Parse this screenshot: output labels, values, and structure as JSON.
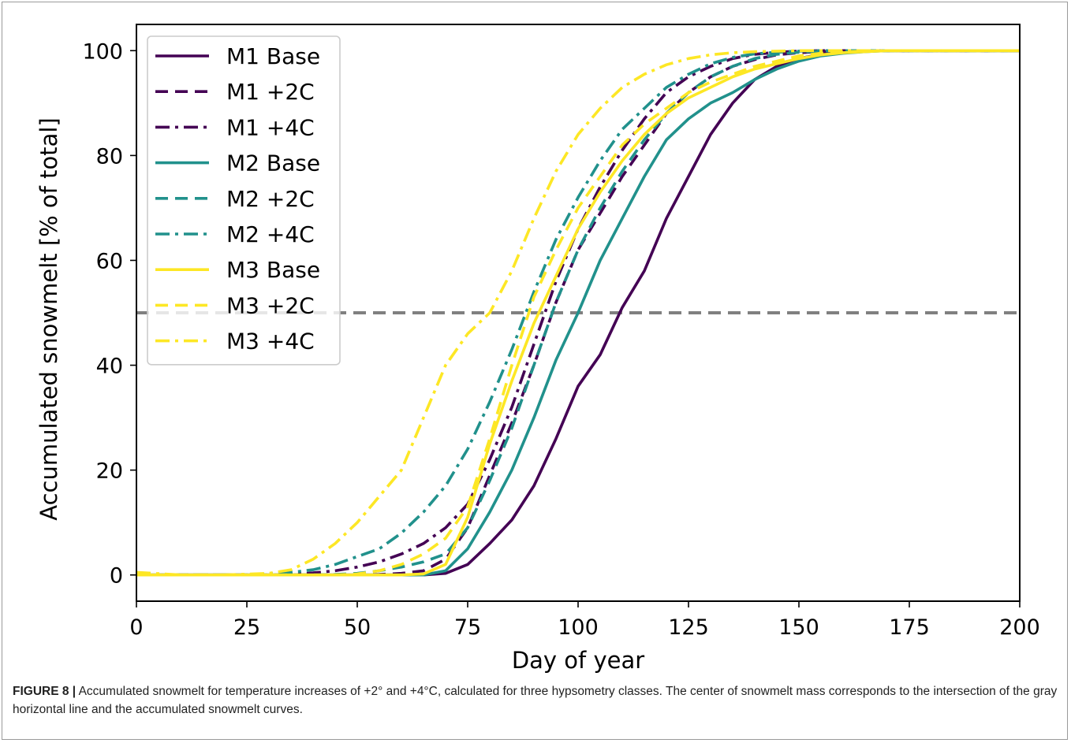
{
  "figure": {
    "caption_label": "FIGURE 8 |",
    "caption_text": " Accumulated snowmelt for temperature increases of +2° and +4°C, calculated for three hypsometry classes. The center of snowmelt mass corresponds to the intersection of the gray horizontal line and the accumulated snowmelt curves."
  },
  "chart_data": {
    "type": "line",
    "title": "",
    "xlabel": "Day of year",
    "ylabel": "Accumulated snowmelt [% of total]",
    "xlim": [
      0,
      200
    ],
    "ylim": [
      -5,
      105
    ],
    "xticks": [
      0,
      25,
      50,
      75,
      100,
      125,
      150,
      175,
      200
    ],
    "yticks": [
      0,
      20,
      40,
      60,
      80,
      100
    ],
    "grid": false,
    "legend_position": "top-left",
    "reference_line": {
      "y": 50,
      "color": "#808080",
      "style": "dashed"
    },
    "x": [
      0,
      10,
      20,
      30,
      35,
      40,
      45,
      50,
      55,
      60,
      65,
      70,
      75,
      80,
      85,
      90,
      95,
      100,
      105,
      110,
      115,
      120,
      125,
      130,
      135,
      140,
      145,
      150,
      155,
      160,
      165,
      170,
      175,
      180,
      185,
      190,
      195,
      200
    ],
    "series": [
      {
        "name": "M1 Base",
        "color": "#440154",
        "style": "solid",
        "values": [
          0,
          0,
          0,
          0,
          0,
          0,
          0,
          0,
          0,
          0,
          0,
          0.3,
          2,
          6,
          10.5,
          17,
          26,
          36,
          42,
          51,
          58,
          68,
          76,
          84,
          90,
          94.5,
          97,
          98.5,
          99.3,
          99.7,
          99.9,
          100,
          100,
          100,
          100,
          100,
          100,
          100
        ]
      },
      {
        "name": "M1 +2C",
        "color": "#440154",
        "style": "dashed",
        "values": [
          0,
          0,
          0,
          0,
          0,
          0,
          0,
          0,
          0.1,
          0.3,
          0.8,
          3,
          9,
          19,
          29,
          40,
          52,
          62,
          69,
          76,
          82,
          88,
          92,
          95,
          97,
          98.3,
          99.2,
          99.6,
          99.8,
          99.9,
          100,
          100,
          100,
          100,
          100,
          100,
          100,
          100
        ]
      },
      {
        "name": "M1 +4C",
        "color": "#440154",
        "style": "dashdot",
        "values": [
          0,
          0,
          0,
          0,
          0.1,
          0.4,
          0.8,
          1.5,
          2.5,
          4,
          6,
          9,
          13.5,
          22,
          32,
          44,
          56,
          66,
          74,
          81,
          87,
          92,
          95,
          97,
          98.5,
          99.3,
          99.7,
          99.9,
          100,
          100,
          100,
          100,
          100,
          100,
          100,
          100,
          100,
          100
        ]
      },
      {
        "name": "M2 Base",
        "color": "#21918c",
        "style": "solid",
        "values": [
          0,
          0,
          0,
          0,
          0,
          0,
          0,
          0,
          0,
          0,
          0,
          0.8,
          5,
          12,
          20,
          30,
          41,
          50,
          60,
          68,
          76,
          83,
          87,
          90,
          92,
          94.5,
          96.5,
          98,
          99,
          99.5,
          99.8,
          100,
          100,
          100,
          100,
          100,
          100,
          100
        ]
      },
      {
        "name": "M2 +2C",
        "color": "#21918c",
        "style": "dashed",
        "values": [
          0,
          0,
          0,
          0,
          0,
          0,
          0.1,
          0.3,
          0.8,
          1.5,
          2.5,
          4,
          9,
          18,
          28,
          40,
          52,
          62,
          70,
          77,
          83,
          88,
          92,
          95,
          97,
          98.5,
          99.3,
          99.7,
          99.9,
          100,
          100,
          100,
          100,
          100,
          100,
          100,
          100,
          100
        ]
      },
      {
        "name": "M2 +4C",
        "color": "#21918c",
        "style": "dashdot",
        "values": [
          0,
          0,
          0,
          0.2,
          0.5,
          1,
          2,
          3.5,
          5,
          8,
          12,
          17,
          24,
          33,
          43,
          54,
          64,
          72,
          79,
          85,
          89,
          93,
          95.5,
          97.5,
          98.7,
          99.4,
          99.7,
          99.9,
          100,
          100,
          100,
          100,
          100,
          100,
          100,
          100,
          100,
          100
        ]
      },
      {
        "name": "M3 Base",
        "color": "#fde725",
        "style": "solid",
        "values": [
          0,
          0,
          0,
          0,
          0,
          0,
          0,
          0,
          0,
          0,
          0.2,
          2,
          11,
          25,
          37,
          48,
          57,
          66,
          73,
          79,
          84,
          88,
          91,
          93,
          95,
          96.5,
          97.5,
          98.5,
          99.2,
          99.6,
          99.8,
          100,
          100,
          100,
          100,
          100,
          100,
          100
        ]
      },
      {
        "name": "M3 +2C",
        "color": "#fde725",
        "style": "dashed",
        "values": [
          0,
          0,
          0,
          0,
          0,
          0,
          0,
          0.2,
          0.8,
          2,
          4,
          7,
          13,
          26,
          40,
          53,
          62,
          70,
          76,
          82,
          86,
          89,
          92,
          94,
          95.5,
          97,
          98,
          99,
          99.5,
          99.8,
          99.9,
          100,
          100,
          100,
          100,
          100,
          100,
          100
        ]
      },
      {
        "name": "M3 +4C",
        "color": "#fde725",
        "style": "dashdot",
        "values": [
          0.5,
          0,
          0,
          0.3,
          1,
          3,
          6,
          10,
          15,
          20,
          30,
          40,
          46,
          50,
          58,
          68,
          77,
          84,
          89,
          93,
          95.5,
          97.3,
          98.5,
          99.2,
          99.6,
          99.8,
          99.9,
          100,
          100,
          100,
          100,
          100,
          100,
          100,
          100,
          100,
          100,
          100
        ]
      }
    ]
  }
}
